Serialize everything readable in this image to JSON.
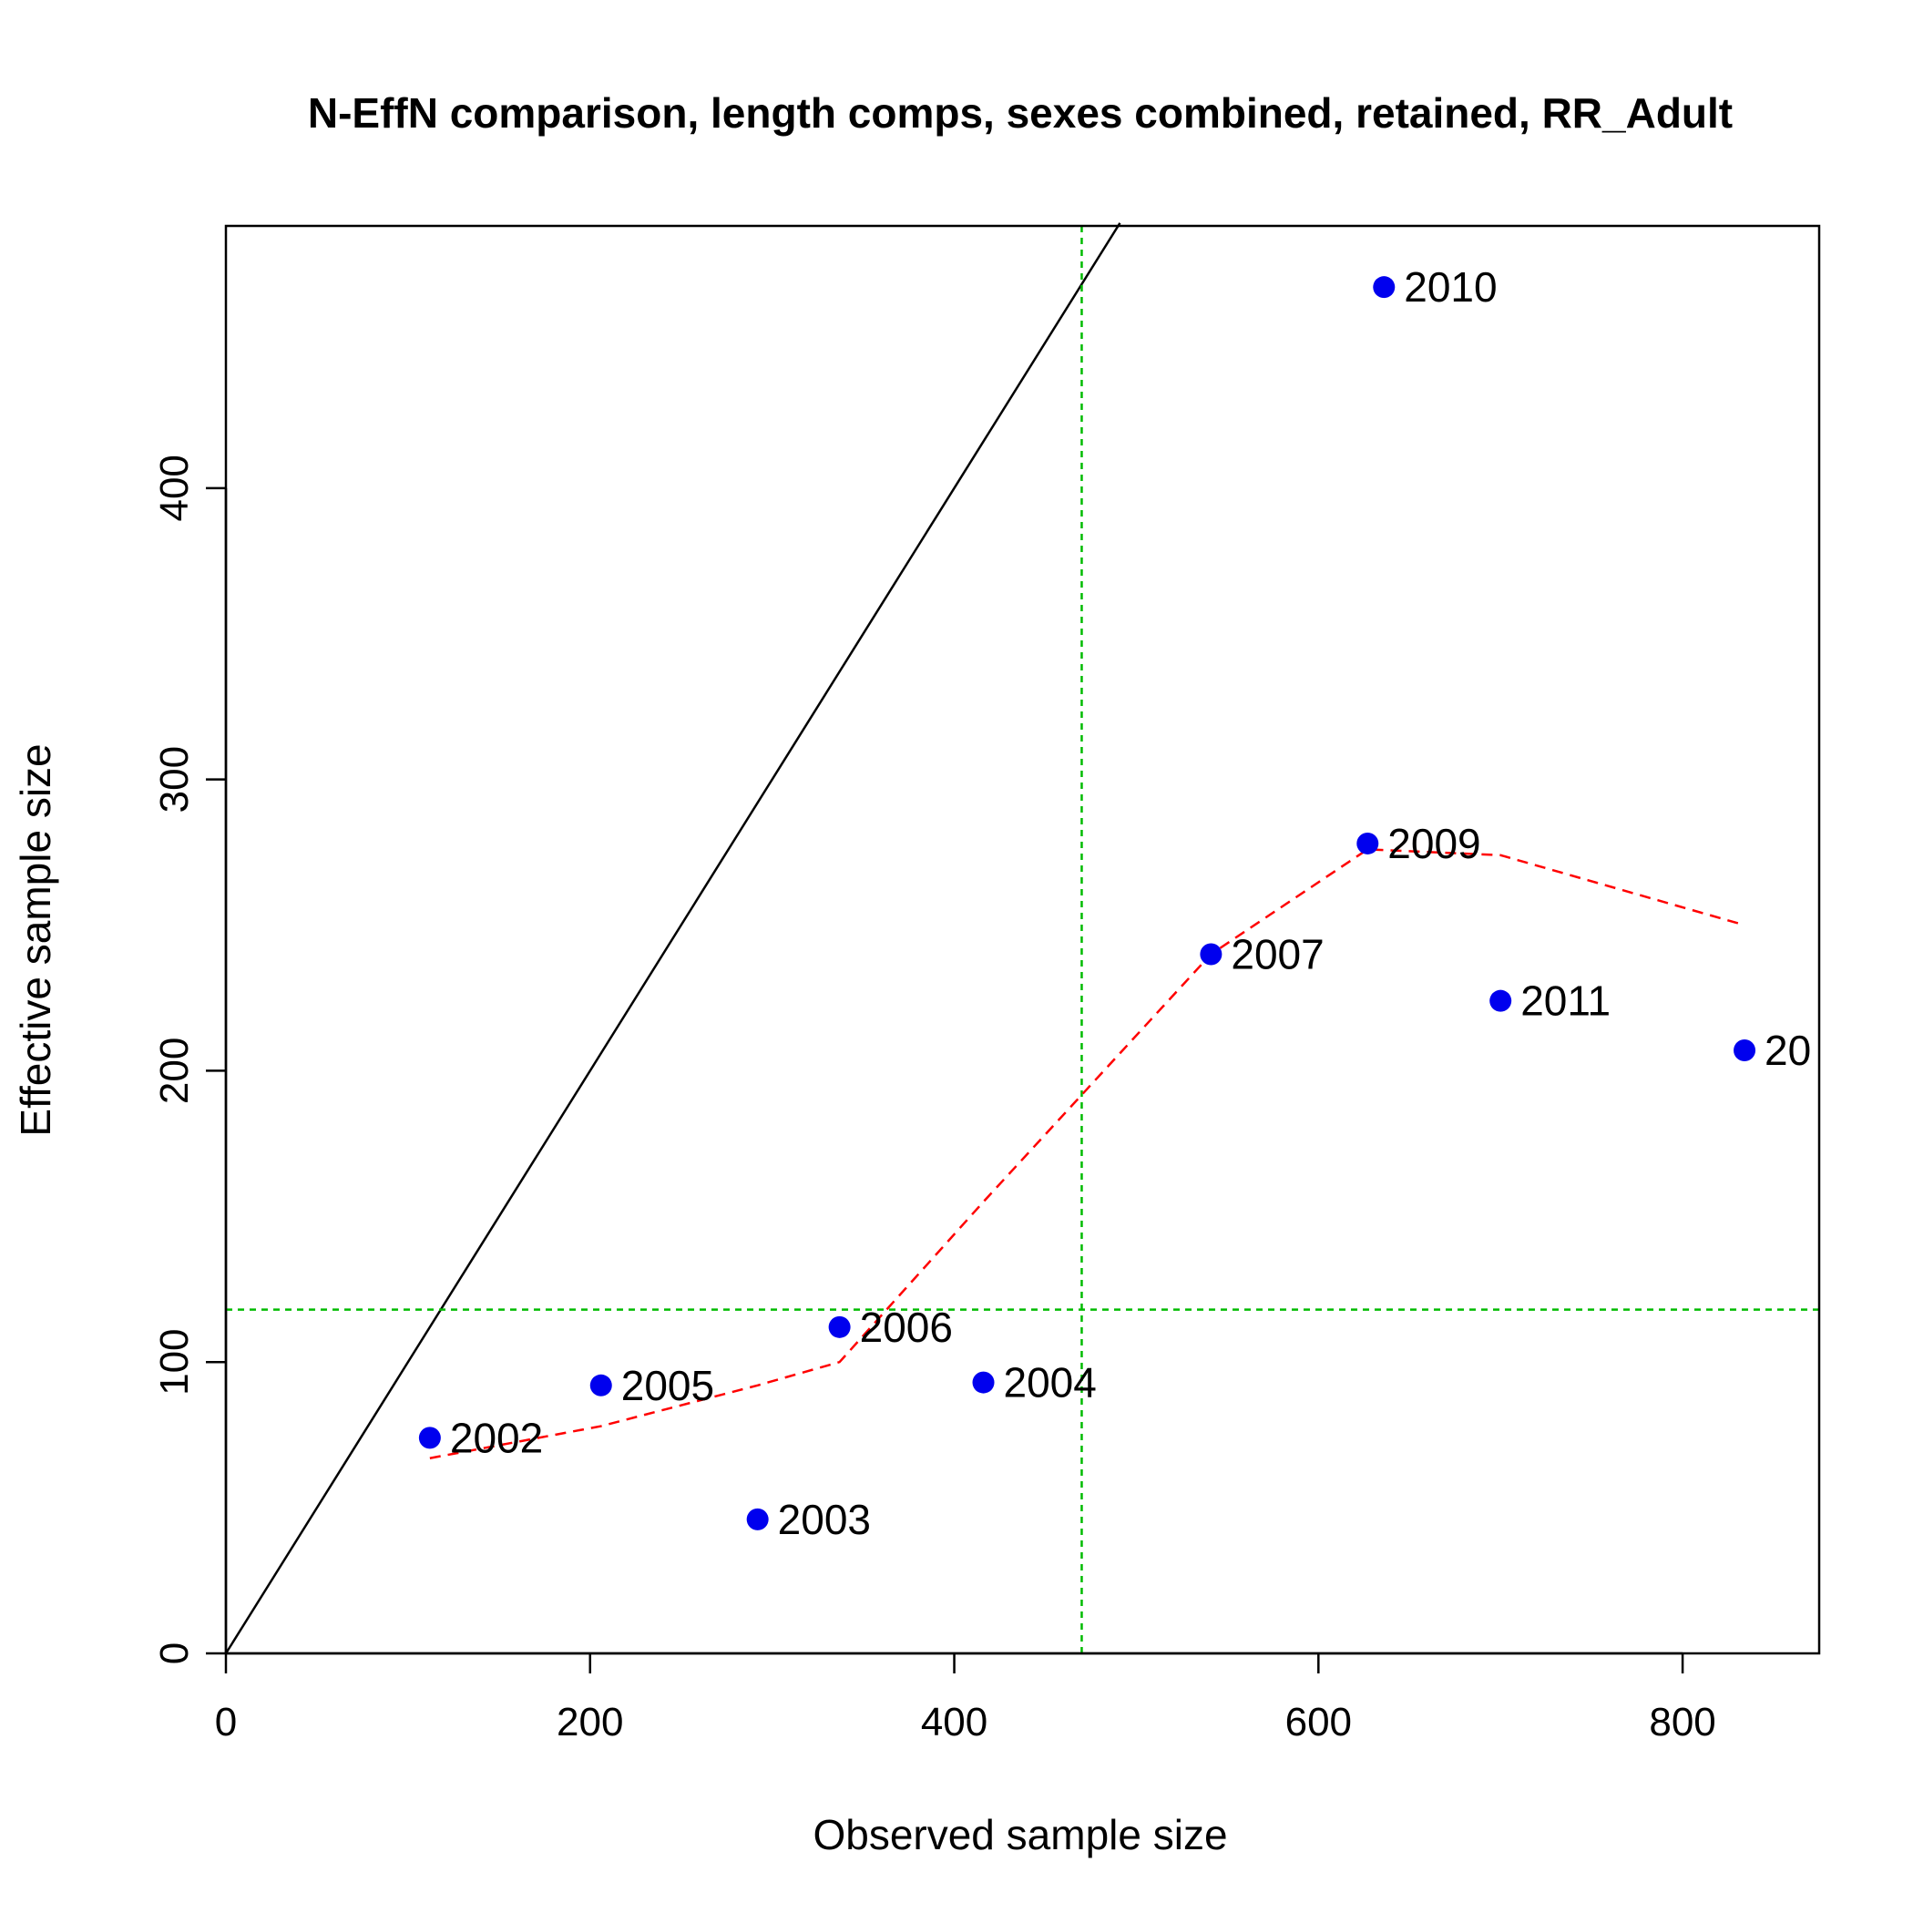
{
  "chart_data": {
    "type": "scatter",
    "title": "N-EffN comparison, length comps, sexes combined, retained, RR_Adult",
    "xlabel": "Observed sample size",
    "ylabel": "Effective sample size",
    "xlim": [
      0,
      875
    ],
    "ylim": [
      0,
      490
    ],
    "x_ticks": [
      0,
      200,
      400,
      600,
      800
    ],
    "y_ticks": [
      0,
      100,
      200,
      300,
      400
    ],
    "colors": {
      "points": "#0000ee",
      "identity_line": "#000000",
      "reference_lines": "#00bb00",
      "smoother": "#ff0000"
    },
    "points": [
      {
        "label": "2002",
        "x": 112,
        "y": 74
      },
      {
        "label": "2003",
        "x": 292,
        "y": 46
      },
      {
        "label": "2004",
        "x": 416,
        "y": 93
      },
      {
        "label": "2005",
        "x": 206,
        "y": 92
      },
      {
        "label": "2006",
        "x": 337,
        "y": 112
      },
      {
        "label": "2007",
        "x": 541,
        "y": 240
      },
      {
        "label": "2009",
        "x": 627,
        "y": 278
      },
      {
        "label": "2010",
        "x": 636,
        "y": 469
      },
      {
        "label": "2011",
        "x": 700,
        "y": 224
      },
      {
        "label": "20",
        "x": 834,
        "y": 207
      }
    ],
    "identity_line": {
      "x": [
        0,
        491
      ],
      "y": [
        0,
        491
      ]
    },
    "reference_lines": {
      "vertical_x": 470,
      "horizontal_y": 118
    },
    "smoother": {
      "x": [
        112,
        206,
        292,
        337,
        416,
        541,
        627,
        700,
        834
      ],
      "y": [
        67,
        78,
        92,
        100,
        155,
        240,
        276,
        274,
        250
      ]
    }
  }
}
